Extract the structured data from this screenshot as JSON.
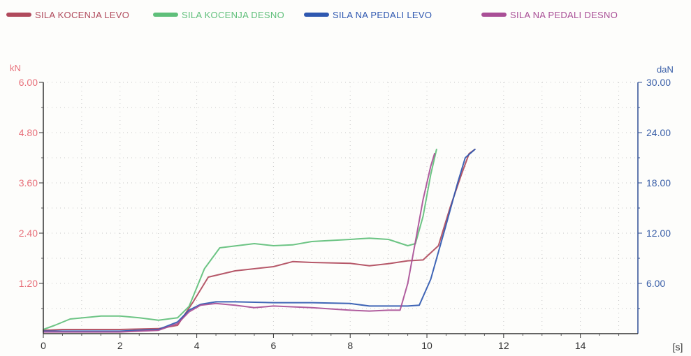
{
  "chart_data": {
    "type": "line",
    "legend_position": "top",
    "grid": true,
    "xlabel": "[s]",
    "xlim": [
      0,
      15.5
    ],
    "x_ticks": [
      "0",
      "2",
      "4",
      "6",
      "8",
      "10",
      "12",
      "14"
    ],
    "x_tick_values": [
      0,
      2,
      4,
      6,
      8,
      10,
      12,
      14
    ],
    "y_left": {
      "unit": "kN",
      "ylim": [
        0,
        6
      ],
      "ticks": [
        "1.20",
        "2.40",
        "3.60",
        "4.80",
        "6.00"
      ],
      "tick_values": [
        1.2,
        2.4,
        3.6,
        4.8,
        6.0
      ],
      "color": "#e8707a"
    },
    "y_right": {
      "unit": "daN",
      "ylim": [
        0,
        30
      ],
      "ticks": [
        "6.00",
        "12.00",
        "18.00",
        "24.00",
        "30.00"
      ],
      "tick_values": [
        6,
        12,
        18,
        24,
        30
      ],
      "color": "#3a5fa8"
    },
    "series": [
      {
        "name": "SILA KOCENJA LEVO",
        "color": "#b04a5c",
        "axis": "left",
        "x": [
          0,
          0.5,
          1,
          2,
          3,
          3.5,
          3.9,
          4.3,
          5,
          6,
          6.5,
          7,
          8,
          8.5,
          9,
          9.5,
          9.9,
          10.3,
          10.6,
          10.9,
          11.1,
          11.25
        ],
        "y": [
          0.08,
          0.1,
          0.1,
          0.1,
          0.12,
          0.2,
          0.75,
          1.35,
          1.5,
          1.6,
          1.72,
          1.7,
          1.68,
          1.62,
          1.67,
          1.74,
          1.76,
          2.1,
          3.0,
          3.8,
          4.3,
          4.4
        ]
      },
      {
        "name": "SILA KOCENJA DESNO",
        "color": "#5fbf7a",
        "axis": "left",
        "x": [
          0,
          0.3,
          0.7,
          1.5,
          2,
          2.5,
          3,
          3.5,
          3.8,
          4.2,
          4.6,
          5.5,
          6,
          6.5,
          7,
          8,
          8.5,
          9,
          9.5,
          9.7,
          9.9,
          10.1,
          10.25
        ],
        "y": [
          0.1,
          0.2,
          0.35,
          0.42,
          0.42,
          0.38,
          0.32,
          0.38,
          0.65,
          1.55,
          2.05,
          2.15,
          2.1,
          2.12,
          2.2,
          2.25,
          2.28,
          2.25,
          2.1,
          2.15,
          2.8,
          3.8,
          4.4
        ]
      },
      {
        "name": "SILA NA PEDALI LEVO",
        "color": "#2f58b0",
        "axis": "right",
        "x": [
          0,
          1,
          2,
          3,
          3.5,
          3.8,
          4.1,
          4.5,
          5,
          6,
          7,
          8,
          8.5,
          9,
          9.5,
          9.8,
          10.1,
          10.5,
          10.8,
          11.0,
          11.25
        ],
        "y": [
          0.3,
          0.3,
          0.3,
          0.5,
          1.4,
          2.8,
          3.5,
          3.8,
          3.8,
          3.7,
          3.7,
          3.6,
          3.3,
          3.3,
          3.3,
          3.4,
          6.5,
          13.0,
          18.0,
          21.0,
          22.0
        ]
      },
      {
        "name": "SILA NA PEDALI DESNO",
        "color": "#a94f96",
        "axis": "right",
        "x": [
          0,
          1,
          2,
          3,
          3.5,
          3.8,
          4.1,
          4.5,
          5,
          5.5,
          6,
          7,
          8,
          8.5,
          9,
          9.3,
          9.5,
          9.7,
          9.9,
          10.1,
          10.2
        ],
        "y": [
          0.2,
          0.2,
          0.2,
          0.4,
          1.2,
          2.6,
          3.4,
          3.6,
          3.4,
          3.1,
          3.3,
          3.1,
          2.8,
          2.7,
          2.8,
          2.8,
          6.0,
          11.0,
          16.0,
          20.0,
          21.5
        ]
      }
    ]
  }
}
